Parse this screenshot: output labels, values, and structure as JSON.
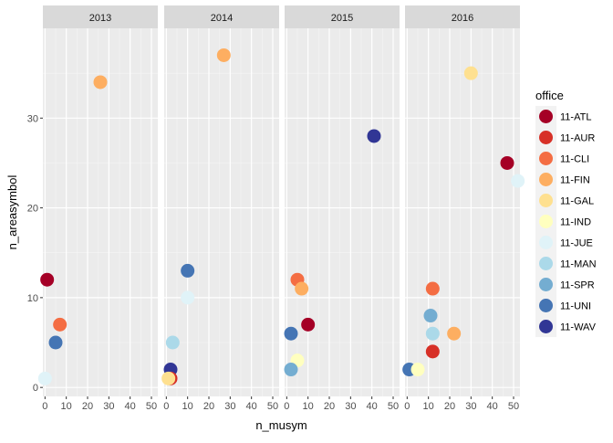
{
  "chart_data": {
    "type": "scatter",
    "facet_by": "year",
    "facets": [
      "2013",
      "2014",
      "2015",
      "2016"
    ],
    "xlabel": "n_musym",
    "ylabel": "n_areasymbol",
    "xlim": [
      -1,
      53
    ],
    "ylim": [
      -1,
      40
    ],
    "x_ticks": [
      0,
      10,
      20,
      30,
      40,
      50
    ],
    "y_ticks": [
      0,
      10,
      20,
      30
    ],
    "grid": true,
    "legend": {
      "title": "office",
      "position": "right",
      "entries": [
        {
          "name": "11-ATL",
          "color": "#a50026"
        },
        {
          "name": "11-AUR",
          "color": "#d73027"
        },
        {
          "name": "11-CLI",
          "color": "#f46d43"
        },
        {
          "name": "11-FIN",
          "color": "#fdae61"
        },
        {
          "name": "11-GAL",
          "color": "#fee090"
        },
        {
          "name": "11-IND",
          "color": "#ffffbf"
        },
        {
          "name": "11-JUE",
          "color": "#e0f3f8"
        },
        {
          "name": "11-MAN",
          "color": "#abd9e9"
        },
        {
          "name": "11-SPR",
          "color": "#74add1"
        },
        {
          "name": "11-UNI",
          "color": "#4575b4"
        },
        {
          "name": "11-WAV",
          "color": "#313695"
        }
      ]
    },
    "points": [
      {
        "facet": "2013",
        "office": "11-ATL",
        "x": 1,
        "y": 12
      },
      {
        "facet": "2013",
        "office": "11-CLI",
        "x": 7,
        "y": 7
      },
      {
        "facet": "2013",
        "office": "11-UNI",
        "x": 5,
        "y": 5
      },
      {
        "facet": "2013",
        "office": "11-FIN",
        "x": 26,
        "y": 34
      },
      {
        "facet": "2013",
        "office": "11-JUE",
        "x": 0,
        "y": 1
      },
      {
        "facet": "2014",
        "office": "11-FIN",
        "x": 27,
        "y": 37
      },
      {
        "facet": "2014",
        "office": "11-UNI",
        "x": 10,
        "y": 13
      },
      {
        "facet": "2014",
        "office": "11-JUE",
        "x": 10,
        "y": 10
      },
      {
        "facet": "2014",
        "office": "11-MAN",
        "x": 3,
        "y": 5
      },
      {
        "facet": "2014",
        "office": "11-WAV",
        "x": 2,
        "y": 2
      },
      {
        "facet": "2014",
        "office": "11-AUR",
        "x": 2,
        "y": 1
      },
      {
        "facet": "2014",
        "office": "11-GAL",
        "x": 1,
        "y": 1
      },
      {
        "facet": "2015",
        "office": "11-WAV",
        "x": 41,
        "y": 28
      },
      {
        "facet": "2015",
        "office": "11-CLI",
        "x": 5,
        "y": 12
      },
      {
        "facet": "2015",
        "office": "11-FIN",
        "x": 7,
        "y": 11
      },
      {
        "facet": "2015",
        "office": "11-ATL",
        "x": 10,
        "y": 7
      },
      {
        "facet": "2015",
        "office": "11-UNI",
        "x": 2,
        "y": 6
      },
      {
        "facet": "2015",
        "office": "11-IND",
        "x": 5,
        "y": 3
      },
      {
        "facet": "2015",
        "office": "11-SPR",
        "x": 2,
        "y": 2
      },
      {
        "facet": "2016",
        "office": "11-GAL",
        "x": 30,
        "y": 35
      },
      {
        "facet": "2016",
        "office": "11-ATL",
        "x": 47,
        "y": 25
      },
      {
        "facet": "2016",
        "office": "11-JUE",
        "x": 52,
        "y": 23
      },
      {
        "facet": "2016",
        "office": "11-CLI",
        "x": 12,
        "y": 11
      },
      {
        "facet": "2016",
        "office": "11-SPR",
        "x": 11,
        "y": 8
      },
      {
        "facet": "2016",
        "office": "11-MAN",
        "x": 12,
        "y": 6
      },
      {
        "facet": "2016",
        "office": "11-FIN",
        "x": 22,
        "y": 6
      },
      {
        "facet": "2016",
        "office": "11-AUR",
        "x": 12,
        "y": 4
      },
      {
        "facet": "2016",
        "office": "11-UNI",
        "x": 1,
        "y": 2
      },
      {
        "facet": "2016",
        "office": "11-IND",
        "x": 5,
        "y": 2
      }
    ]
  }
}
